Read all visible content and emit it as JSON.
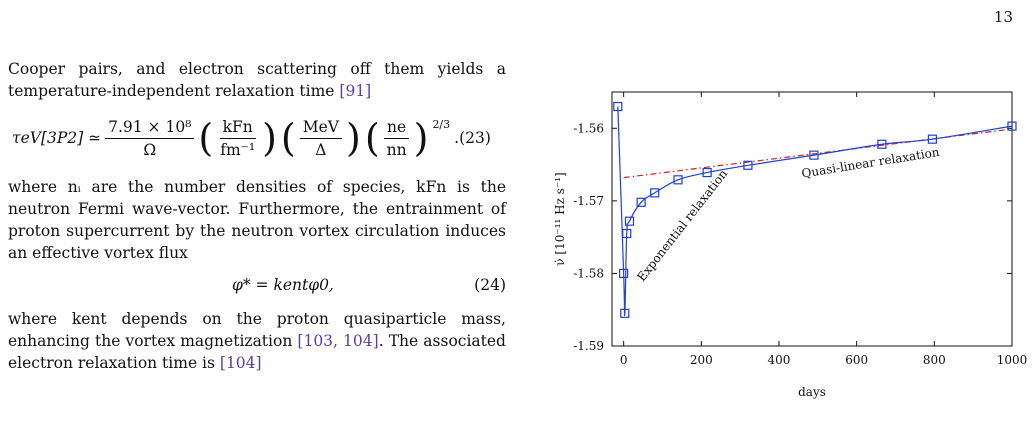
{
  "page_number": "13",
  "text": {
    "p1": [
      "Cooper pairs, and electron scattering off them yields a",
      "temperature-independent relaxation time"
    ],
    "p1_cite": "[91]",
    "eq23_lhs": "τeV[3P2] ≃",
    "eq23_frac": {
      "num": "7.91 × 10⁸",
      "den": "Ω"
    },
    "eq23_kf": {
      "num": "kFn",
      "den": "fm⁻¹"
    },
    "eq23_mev": {
      "num": "MeV",
      "den": "Δ"
    },
    "eq23_ne": {
      "num": "ne",
      "den": "nn"
    },
    "eq23_exp": "2/3",
    "eq23_number": ".(23)",
    "p2": "where nᵢ are the number densities of species, kFn is the neutron Fermi wave-vector. Furthermore, the entrainment of proton supercurrent by the neutron vortex circulation induces an effective vortex flux",
    "eq24": "φ* = kentφ0,",
    "eq24_number": "(24)",
    "p3": "where kent depends on the proton quasiparticle mass, enhancing the vortex magnetization",
    "p3_cite": "[103, 104]",
    "p3_tail": ". The associated electron relaxation time is",
    "p3_cite2": "[104]"
  },
  "chart_data": {
    "type": "line",
    "xlabel": "days",
    "ylabel": "ν̇ [10⁻¹¹ Hz s⁻¹]",
    "xlim": [
      -30,
      1000
    ],
    "ylim": [
      -1.59,
      -1.555
    ],
    "xticks": [
      "0",
      "200",
      "400",
      "600",
      "800",
      "1000"
    ],
    "yticks": [
      "-1.56",
      "-1.57",
      "-1.58",
      "-1.59"
    ],
    "series": [
      {
        "color": "#1f3fd6",
        "marker": "open-square",
        "x": [
          -15,
          0,
          3,
          8,
          15,
          45,
          80,
          140,
          215,
          320,
          490,
          665,
          795,
          1000
        ],
        "y": [
          -1.557,
          -1.58,
          -1.5855,
          -1.5745,
          -1.5728,
          -1.5702,
          -1.5689,
          -1.5671,
          -1.5661,
          -1.5651,
          -1.5637,
          -1.5622,
          -1.5615,
          -1.5597
        ]
      },
      {
        "color": "#d62020",
        "style": "dash-dot",
        "x": [
          0,
          1000
        ],
        "y": [
          -1.5668,
          -1.5601
        ]
      }
    ],
    "annotations": [
      {
        "text": "Quasi-linear relaxation",
        "x": 460,
        "y": -1.5668,
        "angle": -9
      },
      {
        "text": "Exponential relaxation",
        "x": 50,
        "y": -1.5812,
        "angle": -52
      }
    ]
  }
}
